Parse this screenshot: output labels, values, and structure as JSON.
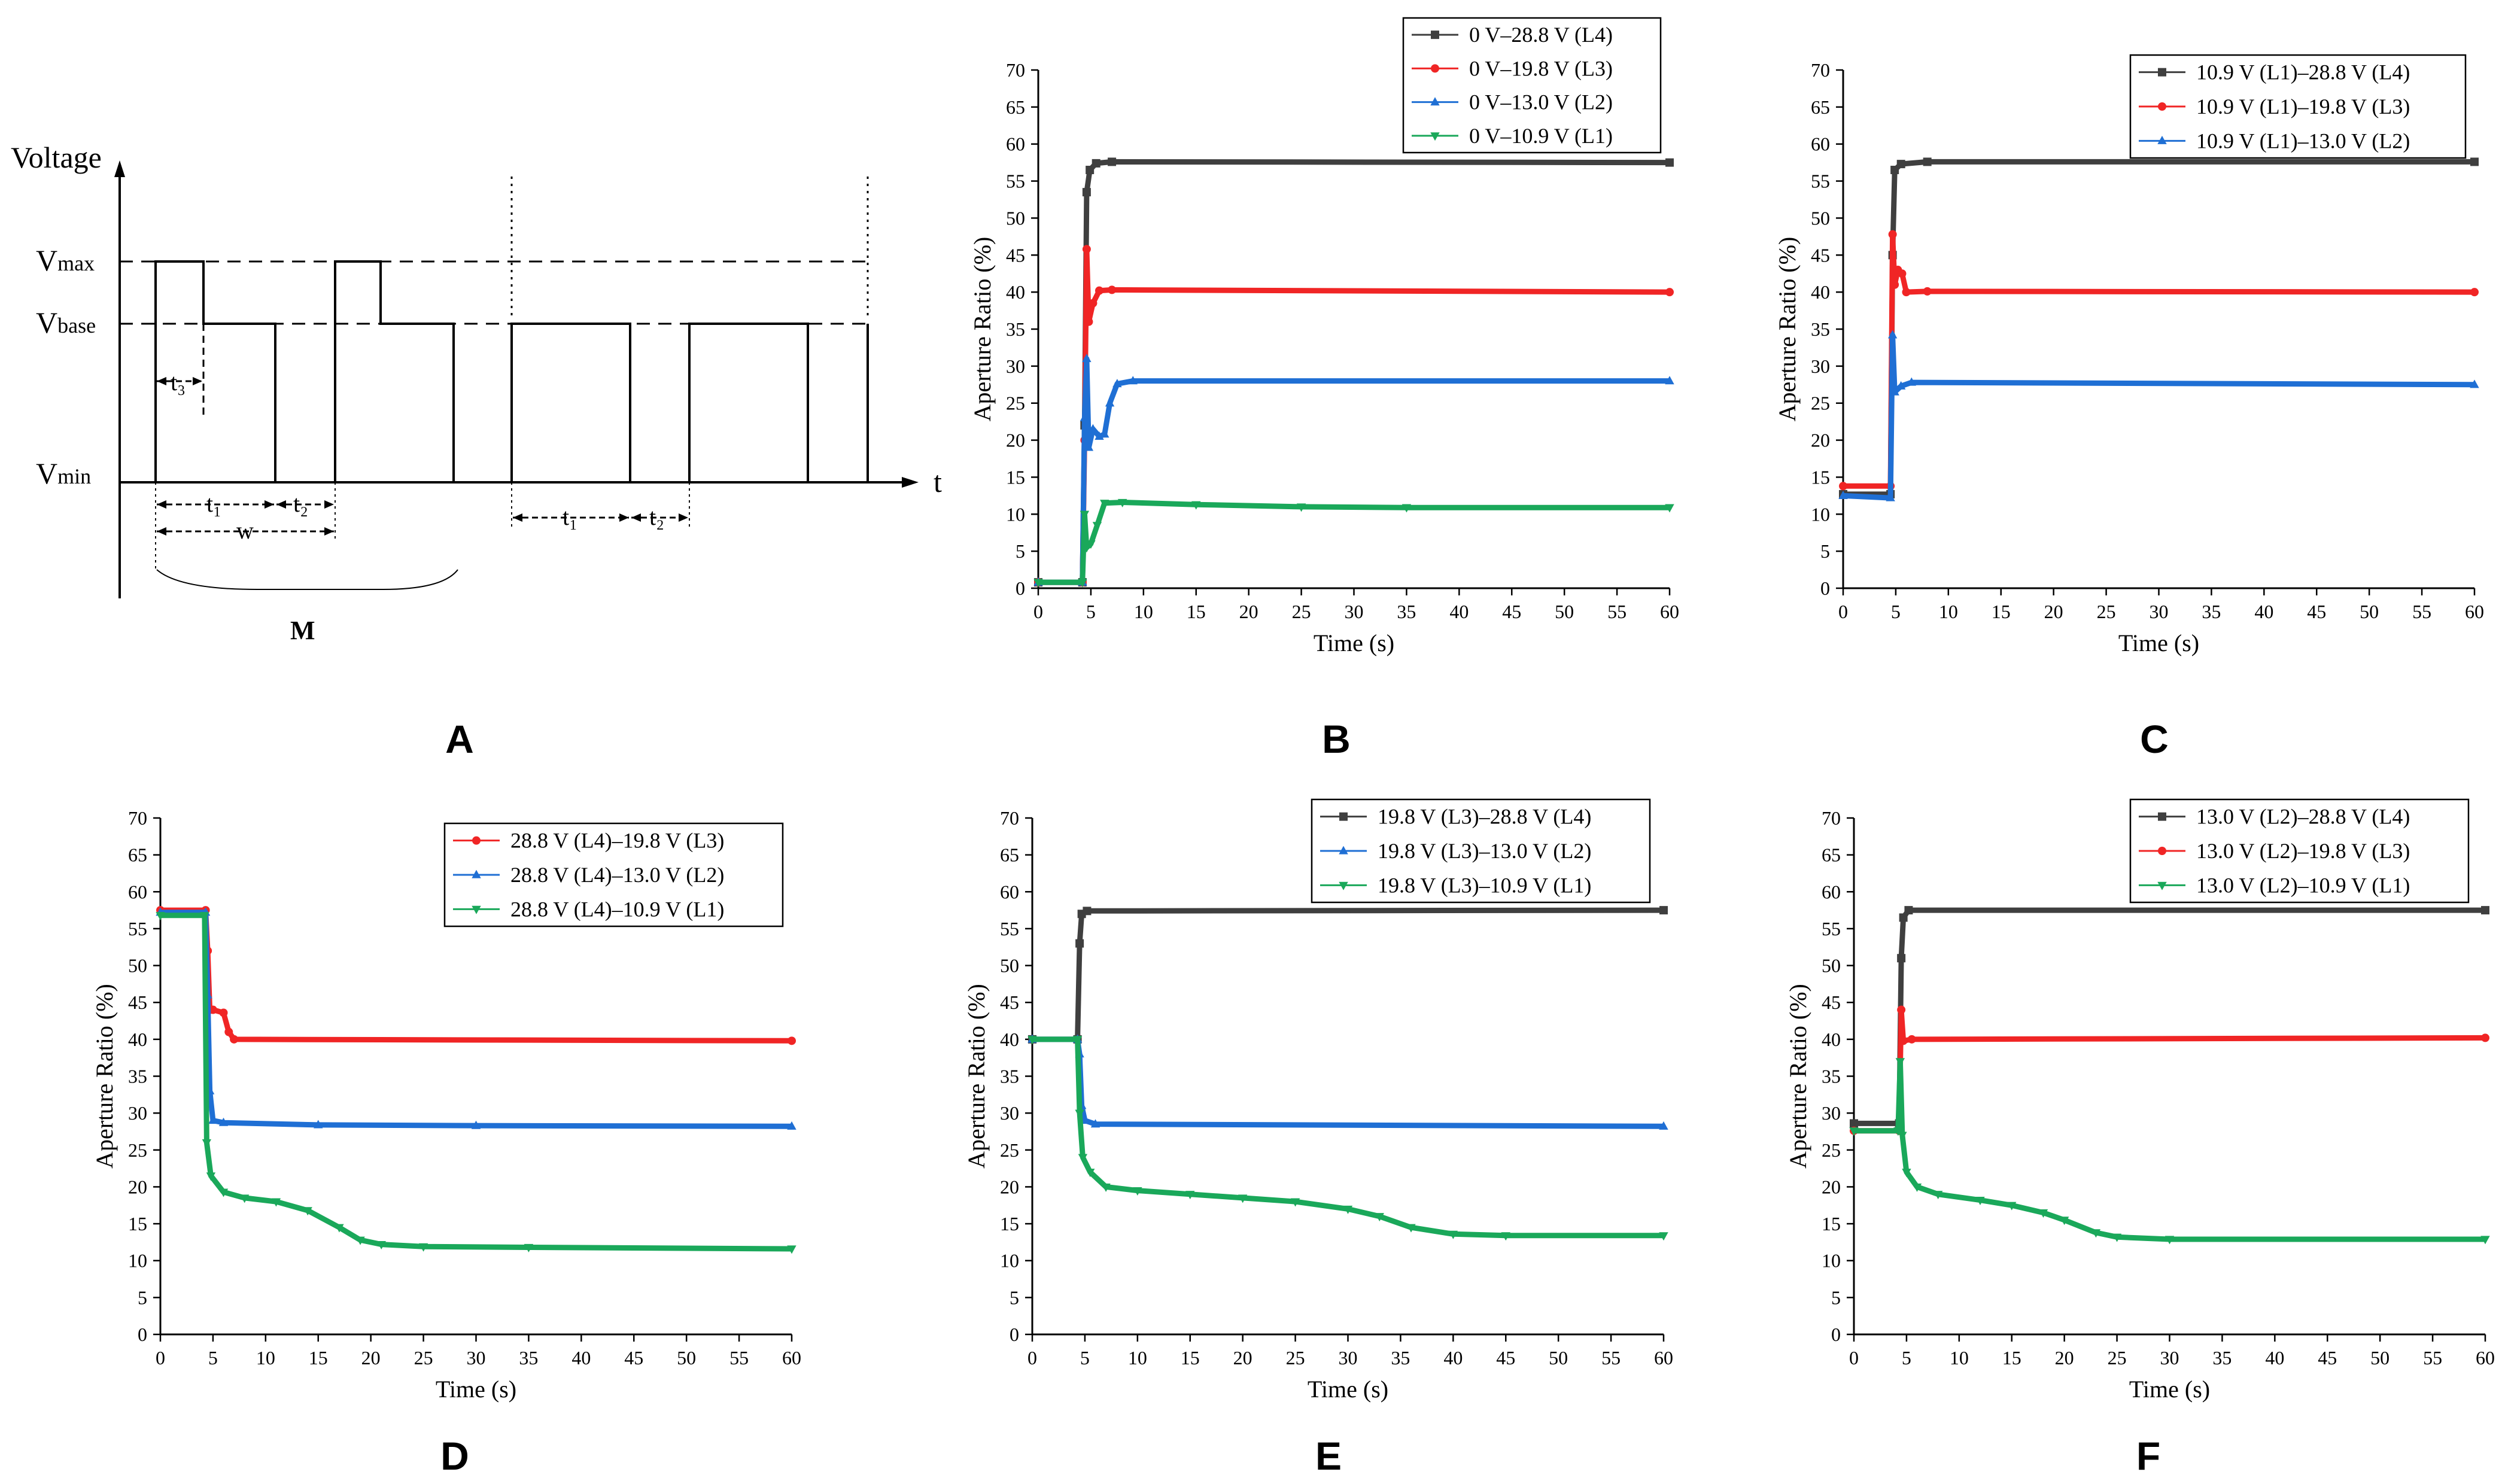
{
  "panels": {
    "A": {
      "letter": "A"
    },
    "B": {
      "letter": "B"
    },
    "C": {
      "letter": "C"
    },
    "D": {
      "letter": "D"
    },
    "E": {
      "letter": "E"
    },
    "F": {
      "letter": "F"
    }
  },
  "diagram_A": {
    "y_axis_label": "Voltage",
    "x_axis_label": "t",
    "levels": [
      "Vₘₐₓ",
      "Vbase",
      "Vmin"
    ],
    "level_labels": {
      "vmax_main": "V",
      "vmax_sub": "max",
      "vbase_main": "V",
      "vbase_sub": "base",
      "vmin_main": "V",
      "vmin_sub": "min"
    },
    "dims": {
      "t3": "t₃",
      "t1": "t₁",
      "t2": "t₂",
      "w": "w",
      "M": "M"
    }
  },
  "colors": {
    "L4": "#3f3f3f",
    "L3": "#f02525",
    "L2": "#1f6fd4",
    "L1": "#1aa85a"
  },
  "chart_data": [
    {
      "panel": "B",
      "type": "line",
      "xlabel": "Time (s)",
      "ylabel": "Aperture Ratio (%)",
      "xlim": [
        0,
        60
      ],
      "ylim": [
        0,
        70
      ],
      "xticks": [
        0,
        5,
        10,
        15,
        20,
        25,
        30,
        35,
        40,
        45,
        50,
        55,
        60
      ],
      "yticks": [
        0,
        5,
        10,
        15,
        20,
        25,
        30,
        35,
        40,
        45,
        50,
        55,
        60,
        65,
        70
      ],
      "legend_position": "top-right",
      "series": [
        {
          "name": "0 V–28.8 V (L4)",
          "key": "L4",
          "marker": "square",
          "points": [
            [
              0,
              0.8
            ],
            [
              4.2,
              0.8
            ],
            [
              4.4,
              22
            ],
            [
              4.6,
              53.5
            ],
            [
              4.9,
              56.5
            ],
            [
              5.5,
              57.4
            ],
            [
              7,
              57.6
            ],
            [
              60,
              57.5
            ]
          ]
        },
        {
          "name": "0 V–19.8 V (L3)",
          "key": "L3",
          "marker": "circle",
          "points": [
            [
              0,
              0.8
            ],
            [
              4.2,
              0.8
            ],
            [
              4.4,
              20
            ],
            [
              4.6,
              45.8
            ],
            [
              4.8,
              36
            ],
            [
              5.2,
              38.5
            ],
            [
              5.8,
              40.2
            ],
            [
              7,
              40.3
            ],
            [
              60,
              40
            ]
          ]
        },
        {
          "name": "0 V–13.0 V (L2)",
          "key": "L2",
          "marker": "triangle-up",
          "points": [
            [
              0,
              0.8
            ],
            [
              4.2,
              0.8
            ],
            [
              4.4,
              23
            ],
            [
              4.6,
              31
            ],
            [
              4.8,
              19
            ],
            [
              5.2,
              21.5
            ],
            [
              5.8,
              20.5
            ],
            [
              6.3,
              20.8
            ],
            [
              6.8,
              25
            ],
            [
              7.5,
              27.6
            ],
            [
              9,
              28
            ],
            [
              60,
              28
            ]
          ]
        },
        {
          "name": "0 V–10.9 V (L1)",
          "key": "L1",
          "marker": "triangle-down",
          "points": [
            [
              0,
              0.8
            ],
            [
              4.2,
              0.8
            ],
            [
              4.4,
              10
            ],
            [
              4.6,
              5.5
            ],
            [
              5,
              6
            ],
            [
              5.6,
              8.5
            ],
            [
              6.3,
              11.5
            ],
            [
              8,
              11.6
            ],
            [
              15,
              11.3
            ],
            [
              25,
              11
            ],
            [
              35,
              10.9
            ],
            [
              60,
              10.9
            ]
          ]
        }
      ]
    },
    {
      "panel": "C",
      "type": "line",
      "xlabel": "Time (s)",
      "ylabel": "Aperture Ratio (%)",
      "xlim": [
        0,
        60
      ],
      "ylim": [
        0,
        70
      ],
      "xticks": [
        0,
        5,
        10,
        15,
        20,
        25,
        30,
        35,
        40,
        45,
        50,
        55,
        60
      ],
      "yticks": [
        0,
        5,
        10,
        15,
        20,
        25,
        30,
        35,
        40,
        45,
        50,
        55,
        60,
        65,
        70
      ],
      "legend_position": "top-right",
      "series": [
        {
          "name": "10.9 V (L1)–28.8 V (L4)",
          "key": "L4",
          "marker": "square",
          "points": [
            [
              0,
              12.7
            ],
            [
              4.5,
              12.7
            ],
            [
              4.7,
              45
            ],
            [
              4.9,
              56.5
            ],
            [
              5.5,
              57.3
            ],
            [
              8,
              57.6
            ],
            [
              60,
              57.6
            ]
          ]
        },
        {
          "name": "10.9 V (L1)–19.8 V (L3)",
          "key": "L3",
          "marker": "circle",
          "points": [
            [
              0,
              13.8
            ],
            [
              4.5,
              13.8
            ],
            [
              4.7,
              47.8
            ],
            [
              4.9,
              41
            ],
            [
              5.2,
              43
            ],
            [
              5.6,
              42.5
            ],
            [
              6,
              40
            ],
            [
              8,
              40.1
            ],
            [
              60,
              40
            ]
          ]
        },
        {
          "name": "10.9 V (L1)–13.0 V (L2)",
          "key": "L2",
          "marker": "triangle-up",
          "points": [
            [
              0,
              12.5
            ],
            [
              4.5,
              12.2
            ],
            [
              4.7,
              34.2
            ],
            [
              4.9,
              26.5
            ],
            [
              5.5,
              27.3
            ],
            [
              6.5,
              27.8
            ],
            [
              60,
              27.5
            ]
          ]
        }
      ]
    },
    {
      "panel": "D",
      "type": "line",
      "xlabel": "Time (s)",
      "ylabel": "Aperture Ratio (%)",
      "xlim": [
        0,
        60
      ],
      "ylim": [
        0,
        70
      ],
      "xticks": [
        0,
        5,
        10,
        15,
        20,
        25,
        30,
        35,
        40,
        45,
        50,
        55,
        60
      ],
      "yticks": [
        0,
        5,
        10,
        15,
        20,
        25,
        30,
        35,
        40,
        45,
        50,
        55,
        60,
        65,
        70
      ],
      "legend_position": "top-right",
      "series": [
        {
          "name": "28.8 V (L4)–19.8 V (L3)",
          "key": "L3",
          "marker": "circle",
          "points": [
            [
              0,
              57.5
            ],
            [
              4.3,
              57.5
            ],
            [
              4.5,
              52
            ],
            [
              4.7,
              44
            ],
            [
              5,
              44
            ],
            [
              6,
              43.6
            ],
            [
              6.5,
              41
            ],
            [
              7,
              40
            ],
            [
              60,
              39.8
            ]
          ]
        },
        {
          "name": "28.8 V (L4)–13.0 V (L2)",
          "key": "L2",
          "marker": "triangle-up",
          "points": [
            [
              0,
              57.2
            ],
            [
              4.3,
              57.2
            ],
            [
              4.5,
              46
            ],
            [
              4.7,
              33
            ],
            [
              5,
              29
            ],
            [
              6,
              28.7
            ],
            [
              15,
              28.4
            ],
            [
              30,
              28.3
            ],
            [
              60,
              28.2
            ]
          ]
        },
        {
          "name": "28.8 V (L4)–10.9 V (L1)",
          "key": "L1",
          "marker": "triangle-down",
          "points": [
            [
              0,
              56.8
            ],
            [
              4.2,
              56.8
            ],
            [
              4.4,
              26
            ],
            [
              4.8,
              21.5
            ],
            [
              6,
              19.3
            ],
            [
              8,
              18.5
            ],
            [
              11,
              18
            ],
            [
              14,
              16.8
            ],
            [
              17,
              14.5
            ],
            [
              19,
              12.8
            ],
            [
              21,
              12.2
            ],
            [
              25,
              11.9
            ],
            [
              35,
              11.8
            ],
            [
              60,
              11.6
            ]
          ]
        }
      ]
    },
    {
      "panel": "E",
      "type": "line",
      "xlabel": "Time (s)",
      "ylabel": "Aperture Ratio (%)",
      "xlim": [
        0,
        60
      ],
      "ylim": [
        0,
        70
      ],
      "xticks": [
        0,
        5,
        10,
        15,
        20,
        25,
        30,
        35,
        40,
        45,
        50,
        55,
        60
      ],
      "yticks": [
        0,
        5,
        10,
        15,
        20,
        25,
        30,
        35,
        40,
        45,
        50,
        55,
        60,
        65,
        70
      ],
      "legend_position": "top-right",
      "series": [
        {
          "name": "19.8 V (L3)–28.8 V (L4)",
          "key": "L4",
          "marker": "square",
          "points": [
            [
              0,
              40
            ],
            [
              4.3,
              40
            ],
            [
              4.5,
              53
            ],
            [
              4.7,
              57
            ],
            [
              5.2,
              57.4
            ],
            [
              60,
              57.5
            ]
          ]
        },
        {
          "name": "19.8 V (L3)–13.0 V (L2)",
          "key": "L2",
          "marker": "triangle-up",
          "points": [
            [
              0,
              40
            ],
            [
              4.3,
              40
            ],
            [
              4.5,
              38
            ],
            [
              4.7,
              31
            ],
            [
              5,
              29
            ],
            [
              6,
              28.5
            ],
            [
              60,
              28.2
            ]
          ]
        },
        {
          "name": "19.8 V (L3)–10.9 V (L1)",
          "key": "L1",
          "marker": "triangle-down",
          "points": [
            [
              0,
              40
            ],
            [
              4.3,
              40
            ],
            [
              4.5,
              30
            ],
            [
              4.8,
              24
            ],
            [
              5.5,
              22
            ],
            [
              7,
              20
            ],
            [
              10,
              19.5
            ],
            [
              15,
              19
            ],
            [
              20,
              18.5
            ],
            [
              25,
              18
            ],
            [
              30,
              17
            ],
            [
              33,
              16
            ],
            [
              36,
              14.5
            ],
            [
              40,
              13.6
            ],
            [
              45,
              13.4
            ],
            [
              60,
              13.4
            ]
          ]
        }
      ]
    },
    {
      "panel": "F",
      "type": "line",
      "xlabel": "Time (s)",
      "ylabel": "Aperture Ratio (%)",
      "xlim": [
        0,
        60
      ],
      "ylim": [
        0,
        70
      ],
      "xticks": [
        0,
        5,
        10,
        15,
        20,
        25,
        30,
        35,
        40,
        45,
        50,
        55,
        60
      ],
      "yticks": [
        0,
        5,
        10,
        15,
        20,
        25,
        30,
        35,
        40,
        45,
        50,
        55,
        60,
        65,
        70
      ],
      "legend_position": "top-right",
      "series": [
        {
          "name": "13.0 V (L2)–28.8 V (L4)",
          "key": "L4",
          "marker": "square",
          "points": [
            [
              0,
              28.6
            ],
            [
              4.3,
              28.6
            ],
            [
              4.5,
              51
            ],
            [
              4.7,
              56.5
            ],
            [
              5.2,
              57.5
            ],
            [
              60,
              57.5
            ]
          ]
        },
        {
          "name": "13.0 V (L2)–19.8 V (L3)",
          "key": "L3",
          "marker": "circle",
          "points": [
            [
              0,
              27.6
            ],
            [
              4.3,
              27.6
            ],
            [
              4.5,
              44
            ],
            [
              4.7,
              39.8
            ],
            [
              5.5,
              40
            ],
            [
              60,
              40.2
            ]
          ]
        },
        {
          "name": "13.0 V (L2)–10.9 V (L1)",
          "key": "L1",
          "marker": "triangle-down",
          "points": [
            [
              0,
              27.6
            ],
            [
              4.2,
              27.6
            ],
            [
              4.4,
              37
            ],
            [
              4.6,
              27
            ],
            [
              5,
              22
            ],
            [
              6,
              20
            ],
            [
              8,
              19
            ],
            [
              12,
              18.2
            ],
            [
              15,
              17.5
            ],
            [
              18,
              16.5
            ],
            [
              20,
              15.5
            ],
            [
              23,
              13.8
            ],
            [
              25,
              13.2
            ],
            [
              30,
              12.9
            ],
            [
              60,
              12.9
            ]
          ]
        }
      ]
    }
  ]
}
